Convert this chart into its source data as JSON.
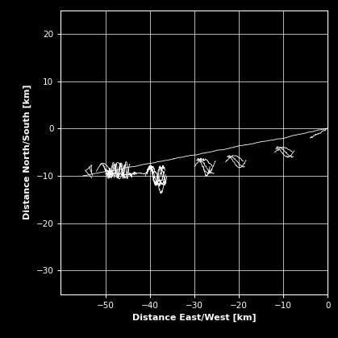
{
  "background_color": "#000000",
  "text_color": "#ffffff",
  "grid_color": "#ffffff",
  "line_color": "#ffffff",
  "xlabel": "Distance East/West [km]",
  "ylabel": "Distance North/South [km]",
  "xlim": [
    -60,
    0
  ],
  "ylim": [
    -35,
    25
  ],
  "xticks": [
    -50,
    -40,
    -30,
    -20,
    -10,
    0
  ],
  "yticks": [
    -30,
    -20,
    -10,
    0,
    10,
    20
  ],
  "figsize": [
    4.19,
    4.19
  ],
  "dpi": 100
}
